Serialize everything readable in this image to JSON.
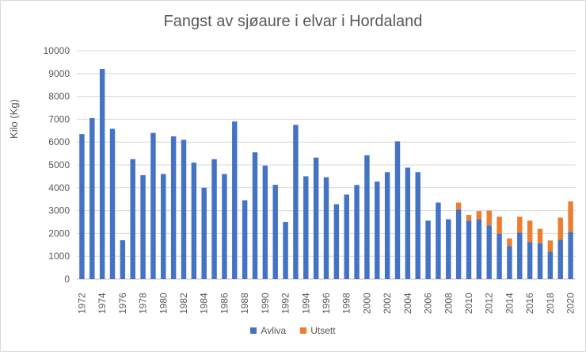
{
  "chart_data": {
    "type": "bar",
    "stacked": true,
    "title": "Fangst av sjøaure i elvar i Hordaland",
    "xlabel": "",
    "ylabel": "Kilo (Kg)",
    "ylim": [
      0,
      10000
    ],
    "yticks": [
      0,
      1000,
      2000,
      3000,
      4000,
      5000,
      6000,
      7000,
      8000,
      9000,
      10000
    ],
    "grid": true,
    "legend_position": "bottom",
    "categories": [
      1972,
      1973,
      1974,
      1975,
      1976,
      1977,
      1978,
      1979,
      1980,
      1981,
      1982,
      1983,
      1984,
      1985,
      1986,
      1987,
      1988,
      1989,
      1990,
      1991,
      1992,
      1993,
      1994,
      1995,
      1996,
      1997,
      1998,
      1999,
      2000,
      2001,
      2002,
      2003,
      2004,
      2005,
      2006,
      2007,
      2008,
      2009,
      2010,
      2011,
      2012,
      2013,
      2014,
      2015,
      2016,
      2017,
      2018,
      2019,
      2020
    ],
    "x_tick_labels": [
      "1972",
      "1974",
      "1976",
      "1978",
      "1980",
      "1982",
      "1984",
      "1986",
      "1988",
      "1990",
      "1992",
      "1994",
      "1996",
      "1998",
      "2000",
      "2002",
      "2004",
      "2006",
      "2008",
      "2010",
      "2012",
      "2014",
      "2016",
      "2018",
      "2020"
    ],
    "series": [
      {
        "name": "Avliva",
        "color": "#4472c4",
        "values": [
          6350,
          7050,
          9200,
          6580,
          1700,
          5250,
          4550,
          6400,
          4600,
          6250,
          6100,
          5100,
          4000,
          5250,
          4600,
          6900,
          3450,
          5550,
          4970,
          4130,
          2500,
          6750,
          4500,
          5320,
          4460,
          3280,
          3700,
          4120,
          5420,
          4270,
          4680,
          6030,
          4880,
          4680,
          2560,
          3350,
          2620,
          3050,
          2560,
          2630,
          2350,
          1980,
          1450,
          2040,
          1620,
          1570,
          1200,
          1730,
          2070
        ]
      },
      {
        "name": "Utsett",
        "color": "#ed7d31",
        "values": [
          0,
          0,
          0,
          0,
          0,
          0,
          0,
          0,
          0,
          0,
          0,
          0,
          0,
          0,
          0,
          0,
          0,
          0,
          0,
          0,
          0,
          0,
          0,
          0,
          0,
          0,
          0,
          0,
          0,
          0,
          0,
          0,
          0,
          0,
          0,
          0,
          0,
          300,
          250,
          350,
          650,
          750,
          330,
          690,
          940,
          630,
          490,
          960,
          1330
        ]
      }
    ]
  }
}
